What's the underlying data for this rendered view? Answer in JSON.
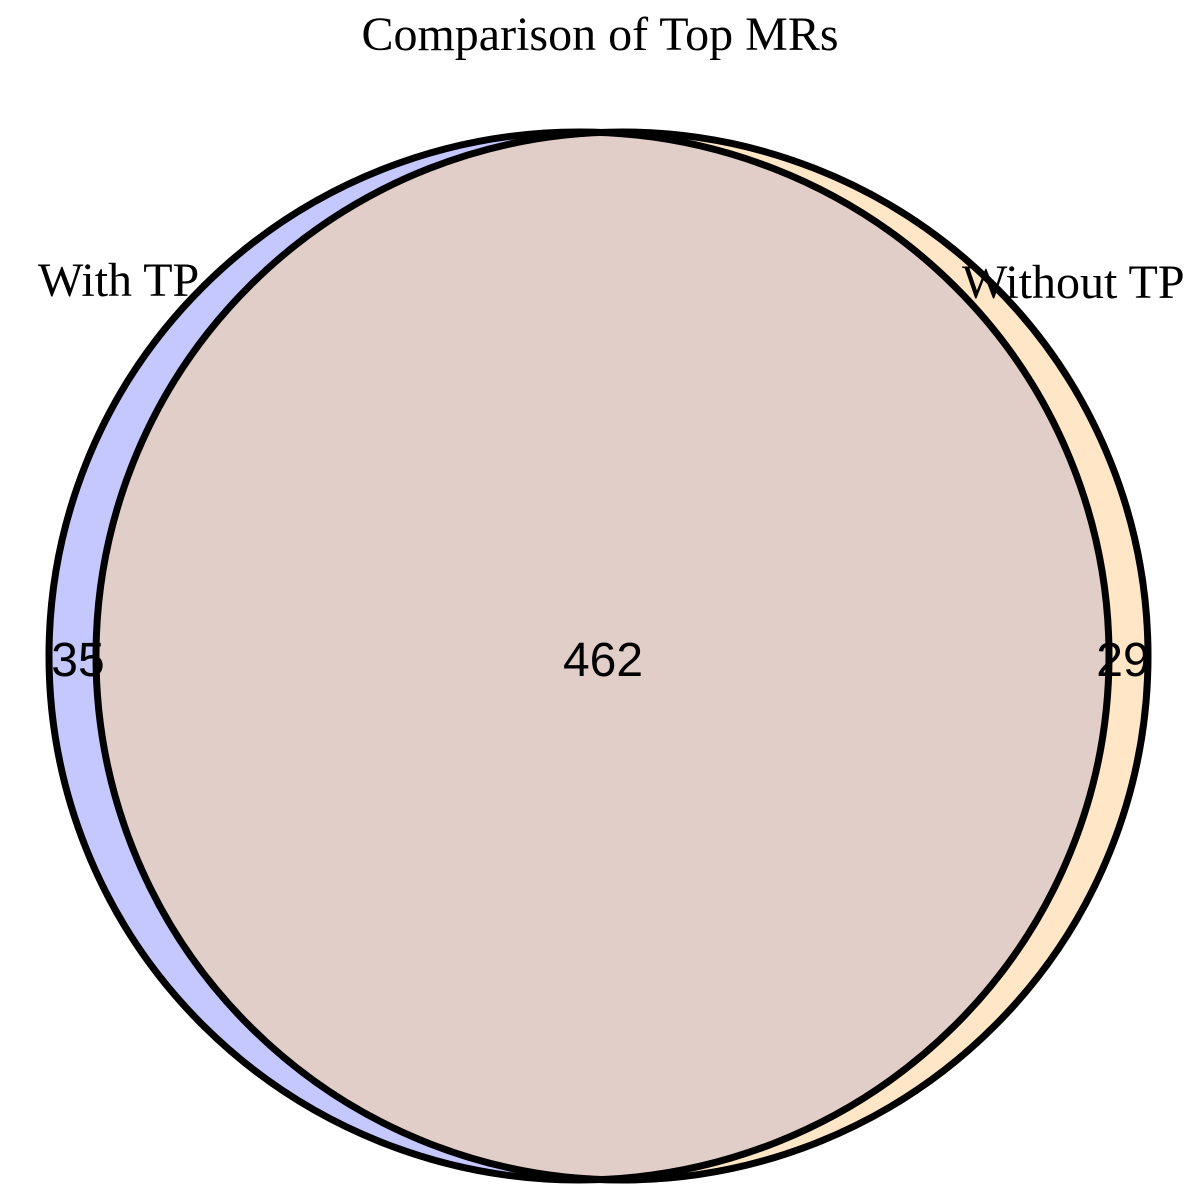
{
  "title": "Comparison of Top MRs",
  "sets": [
    {
      "name": "With TP",
      "color": "#c5c8ff"
    },
    {
      "name": "Without TP",
      "color": "#fee6c6"
    }
  ],
  "intersection_color": "#e2cec8",
  "counts": {
    "left_only": "35",
    "both": "462",
    "right_only": "29"
  }
}
